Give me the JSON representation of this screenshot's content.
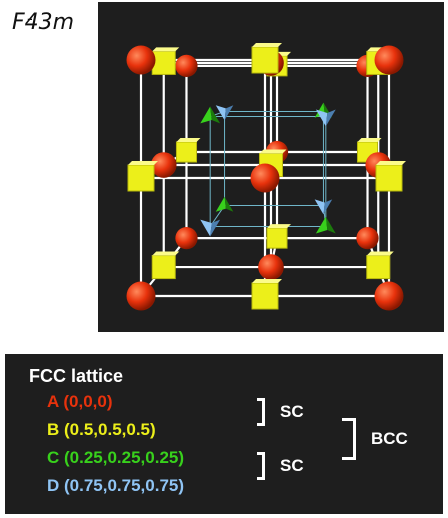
{
  "space_group": {
    "symbol": "F43m",
    "bar": "-"
  },
  "legend": {
    "heading": "FCC lattice",
    "sites": [
      {
        "text": "A (0,0,0)",
        "color": "#e8320c"
      },
      {
        "text": "B (0.5,0.5,0.5)",
        "color": "#ecef1a"
      },
      {
        "text": "C (0.25,0.25,0.25)",
        "color": "#38d11c"
      },
      {
        "text": "D (0.75,0.75,0.75)",
        "color": "#8fc4f4"
      }
    ],
    "sc_label_1": "SC",
    "sc_label_2": "SC",
    "bcc_label": "BCC"
  },
  "colors": {
    "background": "#1e1e1e",
    "bond": "#ffffff",
    "inner_cell": "#6fb6c9",
    "atom_a": "#e8320c",
    "atom_b": "#ecef1a",
    "atom_c": "#38d11c",
    "atom_d": "#8fc4f4"
  }
}
